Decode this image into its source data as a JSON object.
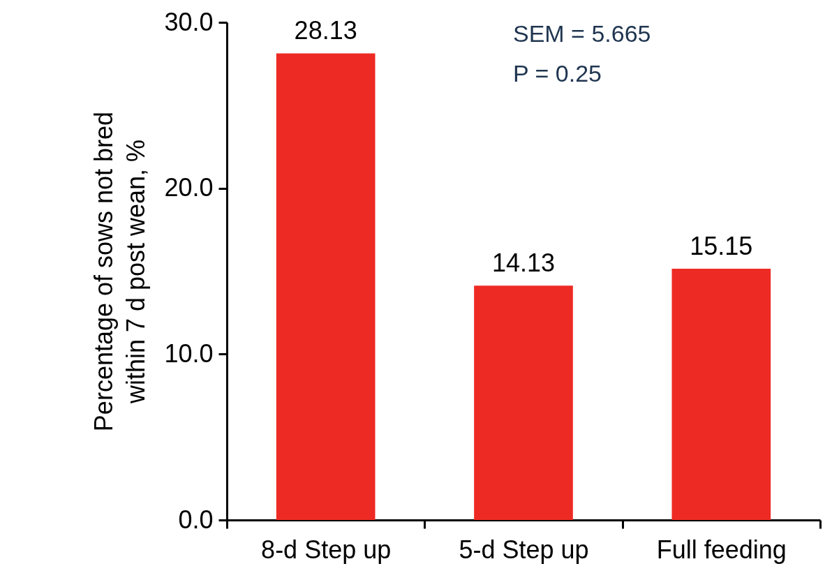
{
  "chart_data": {
    "type": "bar",
    "ylabel": "Percentage of sows not bred within 7 d post wean, %",
    "categories": [
      "8-d Step up",
      "5-d Step up",
      "Full feeding"
    ],
    "values": [
      28.13,
      14.13,
      15.15
    ],
    "color": "#ee2a24",
    "data_labels": true,
    "ylim": [
      0,
      30
    ],
    "yticks": [
      {
        "value": 0,
        "label": "0.0"
      },
      {
        "value": 10,
        "label": "10.0"
      },
      {
        "value": 20,
        "label": "20.0"
      },
      {
        "value": 30,
        "label": "30.0"
      }
    ],
    "annotations": [
      "SEM = 5.665",
      "P = 0.25"
    ],
    "grid": false
  }
}
